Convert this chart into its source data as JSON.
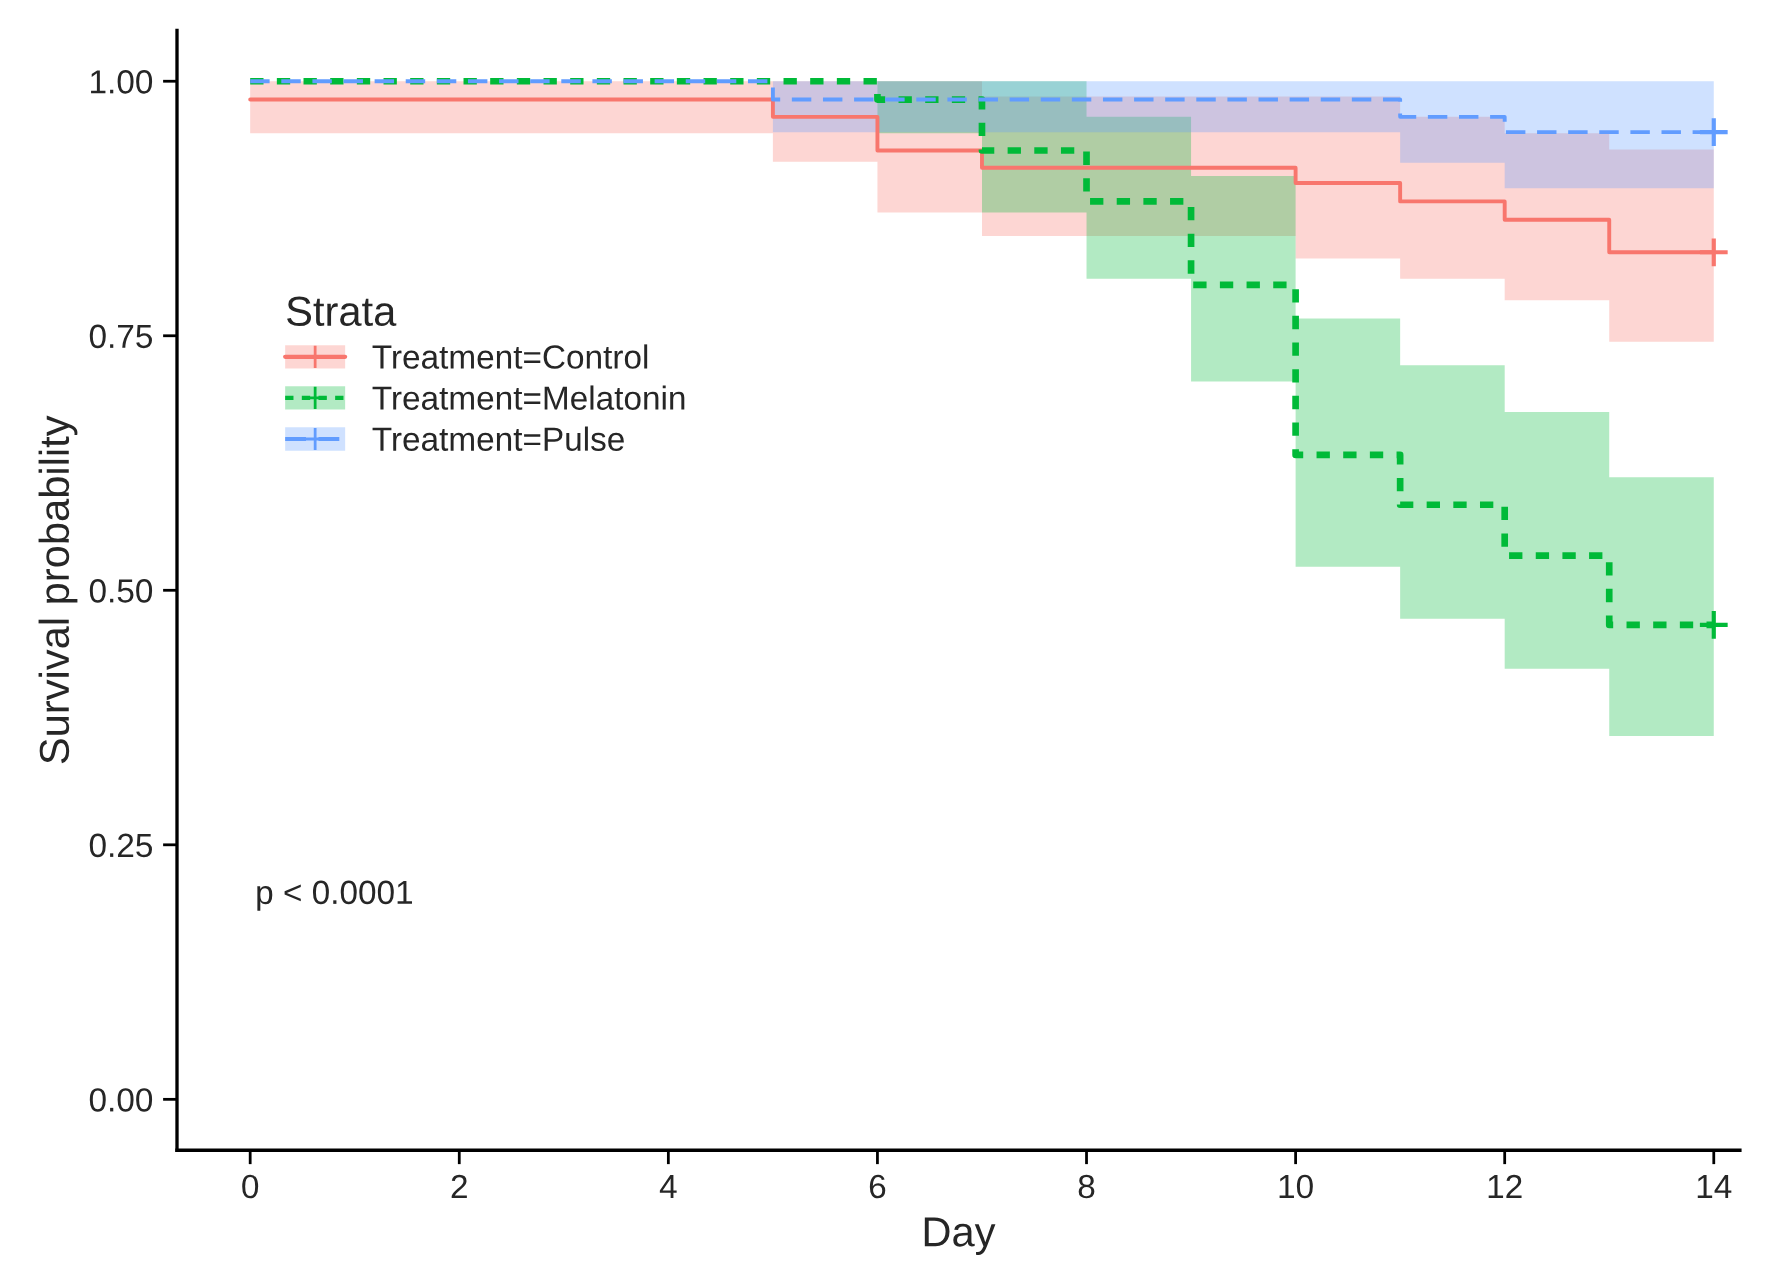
{
  "chart_data": {
    "type": "step",
    "xlabel": "Day",
    "ylabel": "Survival probability",
    "legend_title": "Strata",
    "xlim": [
      -0.7,
      14.25
    ],
    "ylim": [
      -0.05,
      1.05
    ],
    "xticks": [
      0,
      2,
      4,
      6,
      8,
      10,
      12,
      14
    ],
    "yticks": [
      {
        "value": 0,
        "label": "0.00"
      },
      {
        "value": 0.25,
        "label": "0.25"
      },
      {
        "value": 0.5,
        "label": "0.50"
      },
      {
        "value": 0.75,
        "label": "0.75"
      },
      {
        "value": 1,
        "label": "1.00"
      }
    ],
    "grid": false,
    "legend": "top left",
    "annotations": [
      "p < 0.0001"
    ],
    "series": [
      {
        "name": "Treatment=Control",
        "color": "#f8766d",
        "line_style": "solid",
        "x": [
          0,
          5,
          6,
          7,
          10,
          11,
          12,
          13,
          14
        ],
        "values": [
          0.982,
          0.965,
          0.932,
          0.915,
          0.9,
          0.882,
          0.864,
          0.832,
          0.832
        ],
        "lower": [
          0.949,
          0.921,
          0.871,
          0.848,
          0.826,
          0.806,
          0.785,
          0.744,
          0.744
        ],
        "upper": [
          1,
          1,
          1,
          0.985,
          0.985,
          0.965,
          0.949,
          0.933,
          0.933
        ]
      },
      {
        "name": "Treatment=Melatonin",
        "color": "#00ba38",
        "line_style": "dotted",
        "x": [
          0,
          6,
          7,
          8,
          9,
          10,
          11,
          12,
          13,
          14
        ],
        "values": [
          1,
          0.982,
          0.932,
          0.882,
          0.8,
          0.633,
          0.584,
          0.534,
          0.466,
          0.466
        ],
        "lower": [
          1,
          0.949,
          0.871,
          0.806,
          0.705,
          0.523,
          0.472,
          0.423,
          0.357,
          0.357
        ],
        "upper": [
          1,
          1,
          1,
          0.965,
          0.907,
          0.767,
          0.721,
          0.675,
          0.611,
          0.611
        ]
      },
      {
        "name": "Treatment=Pulse",
        "color": "#619cff",
        "line_style": "dashed",
        "x": [
          0,
          5,
          11,
          12,
          14
        ],
        "values": [
          1,
          0.982,
          0.965,
          0.95,
          0.95
        ],
        "lower": [
          1,
          0.95,
          0.92,
          0.895,
          0.895
        ],
        "upper": [
          1,
          1,
          1,
          1,
          1
        ]
      },
      {
        "type": "scatter",
        "marker": "cross",
        "color": "#f8766d",
        "x": [
          14
        ],
        "values": [
          0.832
        ]
      },
      {
        "type": "scatter",
        "marker": "cross",
        "color": "#00ba38",
        "x": [
          14
        ],
        "values": [
          0.466
        ]
      },
      {
        "type": "scatter",
        "marker": "cross",
        "color": "#619cff",
        "x": [
          14
        ],
        "values": [
          0.95
        ]
      }
    ]
  }
}
